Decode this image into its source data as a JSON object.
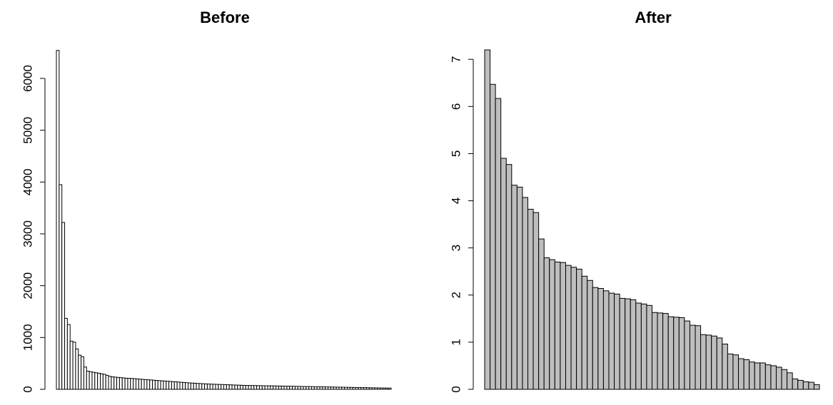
{
  "chart_data": [
    {
      "type": "bar",
      "title": "Before",
      "xlabel": "",
      "ylabel": "",
      "ylim": [
        0,
        6550
      ],
      "yticks": [
        0,
        1000,
        2000,
        3000,
        4000,
        5000,
        6000
      ],
      "bar_fill": "#ffffff",
      "bar_stroke": "#000000",
      "values": [
        6540,
        3950,
        3220,
        1370,
        1250,
        930,
        910,
        780,
        660,
        630,
        430,
        350,
        340,
        330,
        320,
        310,
        300,
        290,
        270,
        250,
        240,
        235,
        230,
        225,
        220,
        215,
        212,
        210,
        205,
        200,
        196,
        192,
        188,
        184,
        180,
        176,
        172,
        168,
        164,
        160,
        156,
        152,
        148,
        144,
        140,
        136,
        132,
        128,
        124,
        120,
        117,
        114,
        111,
        108,
        105,
        102,
        100,
        98,
        96,
        94,
        92,
        90,
        88,
        86,
        84,
        82,
        80,
        78,
        76,
        75,
        74,
        73,
        72,
        71,
        70,
        69,
        68,
        67,
        66,
        65,
        64,
        63,
        62,
        61,
        60,
        59,
        58,
        57,
        56,
        55,
        54,
        53,
        52,
        51,
        50,
        49,
        48,
        47,
        46,
        45,
        44,
        43,
        42,
        41,
        40,
        39,
        38,
        37,
        36,
        35,
        34,
        33,
        32,
        31,
        30,
        29,
        28,
        27,
        26,
        25,
        24,
        23
      ]
    },
    {
      "type": "bar",
      "title": "After",
      "xlabel": "",
      "ylabel": "",
      "ylim": [
        0,
        7.2
      ],
      "yticks": [
        0,
        1,
        2,
        3,
        4,
        5,
        6,
        7
      ],
      "bar_fill": "#bebebe",
      "bar_stroke": "#000000",
      "values": [
        7.2,
        6.47,
        6.17,
        4.9,
        4.77,
        4.33,
        4.29,
        4.07,
        3.82,
        3.75,
        3.19,
        2.79,
        2.75,
        2.7,
        2.69,
        2.63,
        2.59,
        2.55,
        2.4,
        2.31,
        2.16,
        2.14,
        2.09,
        2.04,
        2.02,
        1.93,
        1.92,
        1.9,
        1.83,
        1.81,
        1.78,
        1.63,
        1.62,
        1.61,
        1.54,
        1.53,
        1.52,
        1.45,
        1.36,
        1.35,
        1.16,
        1.15,
        1.13,
        1.09,
        0.96,
        0.75,
        0.73,
        0.65,
        0.63,
        0.58,
        0.56,
        0.56,
        0.52,
        0.5,
        0.47,
        0.42,
        0.35,
        0.22,
        0.19,
        0.16,
        0.15,
        0.1
      ]
    }
  ]
}
